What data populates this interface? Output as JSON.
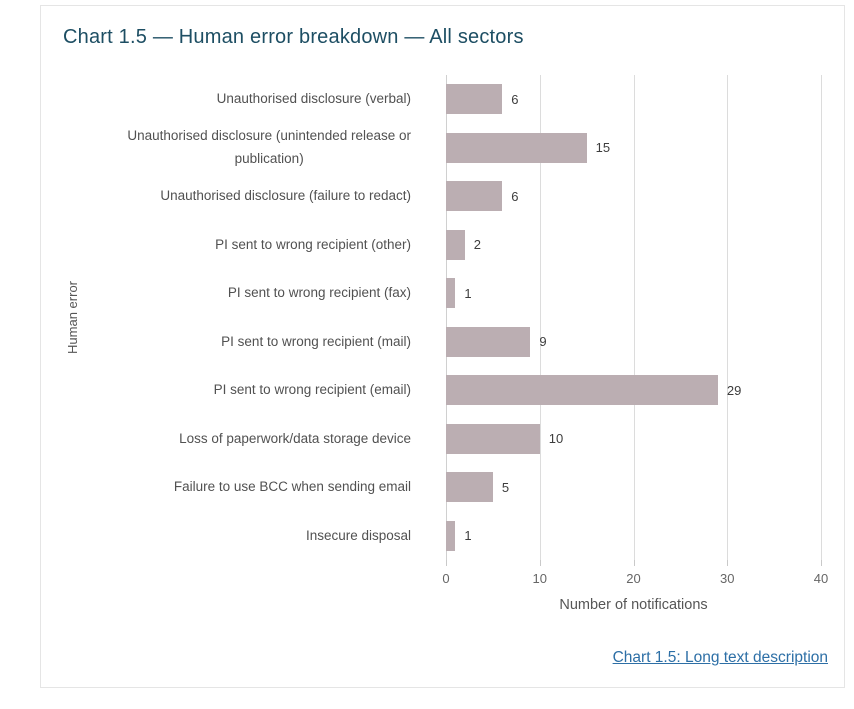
{
  "header": {
    "title": "Chart 1.5 — Human error breakdown — All sectors",
    "title_color": "#1d4e63"
  },
  "chart_data": {
    "type": "bar",
    "orientation": "horizontal",
    "title": "Chart 1.5 — Human error breakdown — All sectors",
    "categories": [
      "Unauthorised disclosure (verbal)",
      "Unauthorised disclosure (unintended release or\npublication)",
      "Unauthorised disclosure (failure to redact)",
      "PI sent to wrong recipient (other)",
      "PI sent to wrong recipient (fax)",
      "PI sent to wrong recipient (mail)",
      "PI sent to wrong recipient (email)",
      "Loss of paperwork/data storage device",
      "Failure to use BCC when sending email",
      "Insecure disposal"
    ],
    "values": [
      6,
      15,
      6,
      2,
      1,
      9,
      29,
      10,
      5,
      1
    ],
    "xlabel": "Number of notifications",
    "ylabel": "Human error",
    "xlim": [
      0,
      40
    ],
    "xticks": [
      0,
      10,
      20,
      30,
      40
    ],
    "grid": true,
    "legend": false,
    "colors": {
      "bar": "#bbaeb2",
      "gridline": "#dcdcdc",
      "axis_line": "#d0d0d0",
      "tick": "#c9c9c9",
      "tick_label": "#666666",
      "axis_title": "#565656",
      "category_label": "#515151",
      "value_label": "#3d3d3d",
      "panel_border": "#e5e5e5"
    }
  },
  "footer": {
    "link_label": "Chart 1.5: Long text description",
    "link_color": "#2d6fa6"
  }
}
